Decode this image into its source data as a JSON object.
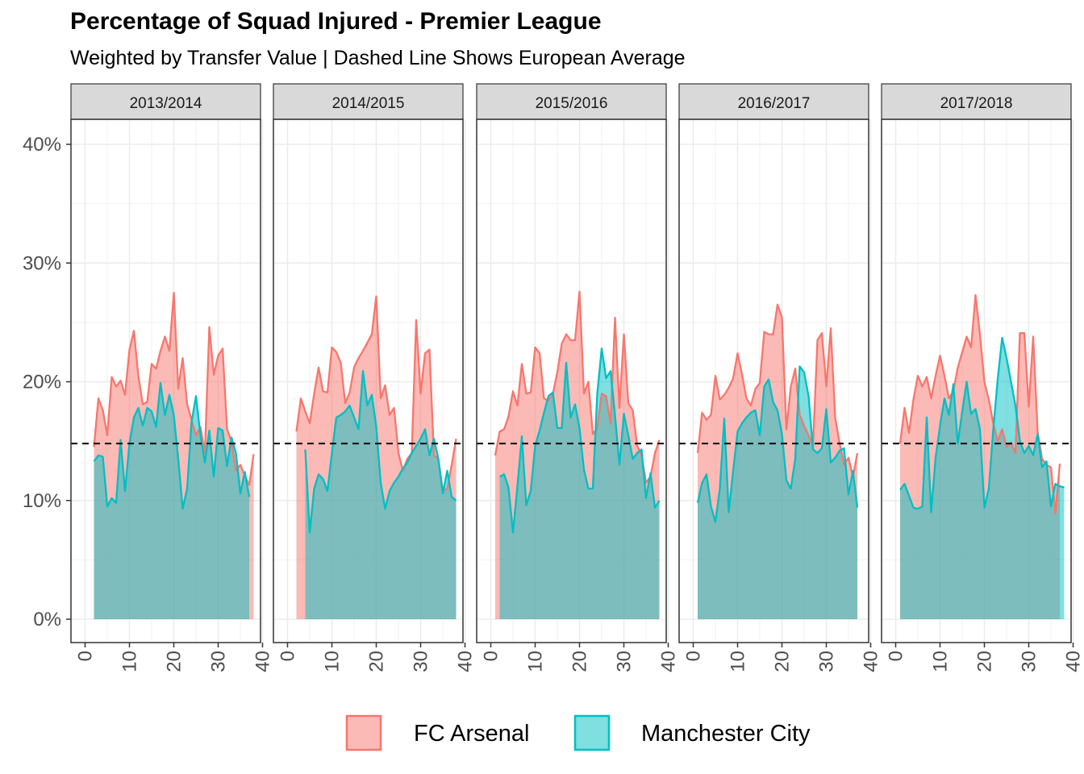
{
  "title": "Percentage of Squad Injured - Premier League",
  "subtitle": "Weighted by Transfer Value | Dashed Line Shows European Average",
  "colors": {
    "arsenal": "#F8766D",
    "city": "#00BFC4"
  },
  "chart_data": {
    "type": "area",
    "facets": [
      "2013/2014",
      "2014/2015",
      "2015/2016",
      "2016/2017",
      "2017/2018"
    ],
    "xlim": [
      -2,
      40
    ],
    "ylim": [
      -0.0175,
      0.42
    ],
    "x_ticks": [
      0,
      10,
      20,
      30,
      40
    ],
    "x_tick_labels": [
      "0",
      "10",
      "20",
      "30",
      "40"
    ],
    "y_ticks": [
      0,
      0.1,
      0.2,
      0.3,
      0.4
    ],
    "y_tick_labels": [
      "0%",
      "10%",
      "20%",
      "30%",
      "40%"
    ],
    "grid": true,
    "reference_line": {
      "y": 0.148,
      "style": "dashed"
    },
    "legend": {
      "position": "bottom",
      "entries": [
        "FC Arsenal",
        "Manchester City"
      ]
    },
    "panels": [
      {
        "facet": "2013/2014",
        "series": [
          {
            "name": "FC Arsenal",
            "x": [
              2,
              3,
              4,
              5,
              6,
              7,
              8,
              9,
              10,
              11,
              12,
              13,
              14,
              15,
              16,
              17,
              18,
              19,
              20,
              21,
              22,
              23,
              24,
              25,
              26,
              27,
              28,
              29,
              30,
              31,
              32,
              33,
              34,
              35,
              36,
              37,
              38
            ],
            "y": [
              0.145,
              0.186,
              0.176,
              0.155,
              0.204,
              0.196,
              0.201,
              0.189,
              0.227,
              0.243,
              0.205,
              0.181,
              0.183,
              0.215,
              0.211,
              0.226,
              0.238,
              0.226,
              0.275,
              0.194,
              0.22,
              0.181,
              0.168,
              0.155,
              0.162,
              0.14,
              0.246,
              0.206,
              0.222,
              0.228,
              0.16,
              0.15,
              0.125,
              0.13,
              0.121,
              0.113,
              0.139
            ]
          },
          {
            "name": "Manchester City",
            "x": [
              2,
              3,
              4,
              5,
              6,
              7,
              8,
              9,
              10,
              11,
              12,
              13,
              14,
              15,
              16,
              17,
              18,
              19,
              20,
              21,
              22,
              23,
              24,
              25,
              26,
              27,
              28,
              29,
              30,
              31,
              32,
              33,
              34,
              35,
              36,
              37
            ],
            "y": [
              0.133,
              0.138,
              0.137,
              0.095,
              0.102,
              0.098,
              0.151,
              0.108,
              0.148,
              0.17,
              0.178,
              0.163,
              0.178,
              0.175,
              0.162,
              0.199,
              0.172,
              0.189,
              0.172,
              0.135,
              0.093,
              0.11,
              0.166,
              0.188,
              0.155,
              0.132,
              0.159,
              0.12,
              0.161,
              0.159,
              0.129,
              0.153,
              0.14,
              0.106,
              0.124,
              0.103
            ]
          }
        ]
      },
      {
        "facet": "2014/2015",
        "series": [
          {
            "name": "FC Arsenal",
            "x": [
              2,
              3,
              4,
              5,
              6,
              7,
              8,
              9,
              10,
              11,
              12,
              13,
              14,
              15,
              16,
              17,
              18,
              19,
              20,
              21,
              22,
              23,
              24,
              25,
              26,
              27,
              28,
              29,
              30,
              31,
              32,
              33,
              34,
              35,
              36,
              37,
              38
            ],
            "y": [
              0.158,
              0.186,
              0.175,
              0.165,
              0.19,
              0.212,
              0.192,
              0.191,
              0.229,
              0.225,
              0.216,
              0.182,
              0.191,
              0.212,
              0.22,
              0.226,
              0.233,
              0.24,
              0.272,
              0.186,
              0.197,
              0.172,
              0.178,
              0.14,
              0.125,
              0.135,
              0.14,
              0.252,
              0.19,
              0.224,
              0.227,
              0.138,
              0.135,
              0.108,
              0.11,
              0.13,
              0.152
            ]
          },
          {
            "name": "Manchester City",
            "x": [
              4,
              5,
              6,
              7,
              8,
              9,
              10,
              11,
              12,
              13,
              14,
              15,
              16,
              17,
              18,
              19,
              20,
              21,
              22,
              23,
              24,
              25,
              26,
              27,
              28,
              29,
              30,
              31,
              32,
              33,
              34,
              35,
              36,
              37,
              38
            ],
            "y": [
              0.143,
              0.073,
              0.11,
              0.122,
              0.118,
              0.108,
              0.14,
              0.17,
              0.172,
              0.175,
              0.18,
              0.17,
              0.16,
              0.209,
              0.18,
              0.189,
              0.162,
              0.115,
              0.093,
              0.108,
              0.115,
              0.12,
              0.127,
              0.132,
              0.14,
              0.146,
              0.152,
              0.16,
              0.138,
              0.152,
              0.135,
              0.106,
              0.125,
              0.103,
              0.1
            ]
          }
        ]
      },
      {
        "facet": "2015/2016",
        "series": [
          {
            "name": "FC Arsenal",
            "x": [
              1,
              2,
              3,
              4,
              5,
              6,
              7,
              8,
              9,
              10,
              11,
              12,
              13,
              14,
              15,
              16,
              17,
              18,
              19,
              20,
              21,
              22,
              23,
              24,
              25,
              26,
              27,
              28,
              29,
              30,
              31,
              32,
              33,
              34,
              35,
              36,
              37,
              38
            ],
            "y": [
              0.138,
              0.158,
              0.16,
              0.171,
              0.192,
              0.18,
              0.215,
              0.19,
              0.191,
              0.229,
              0.224,
              0.186,
              0.184,
              0.19,
              0.208,
              0.232,
              0.24,
              0.235,
              0.235,
              0.276,
              0.19,
              0.2,
              0.156,
              0.161,
              0.19,
              0.188,
              0.165,
              0.254,
              0.178,
              0.24,
              0.182,
              0.176,
              0.146,
              0.138,
              0.115,
              0.12,
              0.14,
              0.151
            ]
          },
          {
            "name": "Manchester City",
            "x": [
              2,
              3,
              4,
              5,
              6,
              7,
              8,
              9,
              10,
              11,
              12,
              13,
              14,
              15,
              16,
              17,
              18,
              19,
              20,
              21,
              22,
              23,
              24,
              25,
              26,
              27,
              28,
              29,
              30,
              31,
              32,
              33,
              34,
              35,
              36,
              37,
              38
            ],
            "y": [
              0.12,
              0.122,
              0.111,
              0.073,
              0.112,
              0.154,
              0.096,
              0.108,
              0.146,
              0.159,
              0.174,
              0.188,
              0.191,
              0.161,
              0.161,
              0.216,
              0.17,
              0.181,
              0.161,
              0.126,
              0.11,
              0.11,
              0.19,
              0.228,
              0.203,
              0.209,
              0.172,
              0.13,
              0.173,
              0.155,
              0.135,
              0.14,
              0.143,
              0.102,
              0.123,
              0.094,
              0.1
            ]
          }
        ]
      },
      {
        "facet": "2016/2017",
        "series": [
          {
            "name": "FC Arsenal",
            "x": [
              1,
              2,
              3,
              4,
              5,
              6,
              7,
              8,
              9,
              10,
              11,
              12,
              13,
              14,
              15,
              16,
              17,
              18,
              19,
              20,
              21,
              22,
              23,
              24,
              25,
              26,
              27,
              28,
              29,
              30,
              31,
              32,
              33,
              34,
              35,
              36,
              37
            ],
            "y": [
              0.14,
              0.174,
              0.168,
              0.172,
              0.205,
              0.185,
              0.189,
              0.195,
              0.203,
              0.224,
              0.206,
              0.186,
              0.18,
              0.194,
              0.199,
              0.242,
              0.24,
              0.24,
              0.265,
              0.254,
              0.16,
              0.196,
              0.211,
              0.172,
              0.163,
              0.155,
              0.146,
              0.235,
              0.241,
              0.196,
              0.245,
              0.17,
              0.148,
              0.13,
              0.136,
              0.12,
              0.14
            ]
          },
          {
            "name": "Manchester City",
            "x": [
              1,
              2,
              3,
              4,
              5,
              6,
              7,
              8,
              9,
              10,
              11,
              12,
              13,
              14,
              15,
              16,
              17,
              18,
              19,
              20,
              21,
              22,
              23,
              24,
              25,
              26,
              27,
              28,
              29,
              30,
              31,
              32,
              33,
              34,
              35,
              36,
              37
            ],
            "y": [
              0.098,
              0.115,
              0.122,
              0.095,
              0.082,
              0.11,
              0.169,
              0.09,
              0.125,
              0.158,
              0.165,
              0.17,
              0.174,
              0.176,
              0.155,
              0.196,
              0.202,
              0.183,
              0.176,
              0.156,
              0.117,
              0.11,
              0.135,
              0.213,
              0.208,
              0.188,
              0.143,
              0.14,
              0.144,
              0.177,
              0.132,
              0.136,
              0.142,
              0.144,
              0.105,
              0.125,
              0.094
            ]
          }
        ]
      },
      {
        "facet": "2017/2018",
        "series": [
          {
            "name": "FC Arsenal",
            "x": [
              1,
              2,
              3,
              4,
              5,
              6,
              7,
              8,
              9,
              10,
              11,
              12,
              13,
              14,
              15,
              16,
              17,
              18,
              19,
              20,
              21,
              22,
              23,
              24,
              25,
              26,
              27,
              28,
              29,
              30,
              31,
              32,
              33,
              34,
              35,
              36,
              37
            ],
            "y": [
              0.148,
              0.178,
              0.157,
              0.185,
              0.205,
              0.196,
              0.204,
              0.186,
              0.205,
              0.222,
              0.205,
              0.186,
              0.192,
              0.212,
              0.225,
              0.238,
              0.229,
              0.273,
              0.24,
              0.2,
              0.185,
              0.165,
              0.15,
              0.16,
              0.145,
              0.149,
              0.14,
              0.241,
              0.241,
              0.179,
              0.238,
              0.158,
              0.135,
              0.13,
              0.128,
              0.089,
              0.131
            ]
          },
          {
            "name": "Manchester City",
            "x": [
              1,
              2,
              3,
              4,
              5,
              6,
              7,
              8,
              9,
              10,
              11,
              12,
              13,
              14,
              15,
              16,
              17,
              18,
              19,
              20,
              21,
              22,
              23,
              24,
              25,
              26,
              27,
              28,
              29,
              30,
              31,
              32,
              33,
              34,
              35,
              36,
              37,
              38
            ],
            "y": [
              0.109,
              0.114,
              0.104,
              0.094,
              0.093,
              0.095,
              0.17,
              0.09,
              0.136,
              0.163,
              0.186,
              0.172,
              0.198,
              0.148,
              0.175,
              0.2,
              0.173,
              0.177,
              0.16,
              0.094,
              0.11,
              0.16,
              0.202,
              0.237,
              0.22,
              0.2,
              0.18,
              0.15,
              0.14,
              0.146,
              0.138,
              0.156,
              0.128,
              0.133,
              0.095,
              0.114,
              0.112,
              0.111
            ]
          }
        ]
      }
    ]
  }
}
